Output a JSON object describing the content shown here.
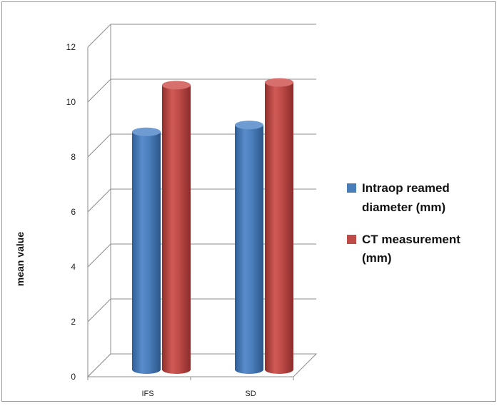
{
  "chart_data": {
    "type": "bar",
    "title": "",
    "xlabel": "",
    "ylabel": "mean value",
    "ylim": [
      0,
      12
    ],
    "yticks": [
      "0",
      "2",
      "4",
      "6",
      "8",
      "10",
      "12"
    ],
    "categories": [
      "IFS",
      "SD"
    ],
    "series": [
      {
        "name": "Intraop reamed diameter (mm)",
        "values": [
          8.5,
          8.75
        ],
        "color": "#4a7ebb"
      },
      {
        "name": "CT measurement (mm)",
        "values": [
          10.2,
          10.3
        ],
        "color": "#be4b48"
      }
    ],
    "legend_position": "right",
    "legend_lines": [
      [
        "Intraop reamed",
        "diameter (mm)"
      ],
      [
        "CT measurement",
        "(mm)"
      ]
    ],
    "grid": true,
    "style": "3d-cylinder"
  }
}
